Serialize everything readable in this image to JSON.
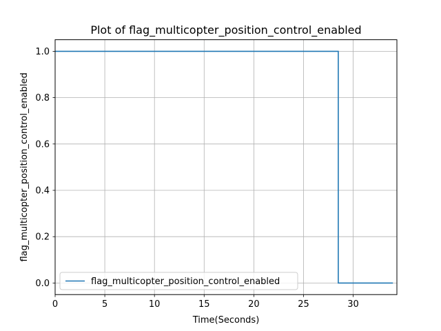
{
  "chart_data": {
    "type": "line",
    "title": "Plot of flag_multicopter_position_control_enabled",
    "xlabel": "Time(Seconds)",
    "ylabel": "flag_multicopter_position_control_enabled",
    "xlim": [
      0,
      34.4
    ],
    "ylim": [
      -0.05,
      1.05
    ],
    "x_ticks": [
      0,
      5,
      10,
      15,
      20,
      25,
      30
    ],
    "y_ticks": [
      0.0,
      0.2,
      0.4,
      0.6,
      0.8,
      1.0
    ],
    "x_tick_labels": [
      "0",
      "5",
      "10",
      "15",
      "20",
      "25",
      "30"
    ],
    "y_tick_labels": [
      "0.0",
      "0.2",
      "0.4",
      "0.6",
      "0.8",
      "1.0"
    ],
    "grid": true,
    "legend_position": "lower-left",
    "series": [
      {
        "name": "flag_multicopter_position_control_enabled",
        "color": "#1f77b4",
        "x": [
          0,
          28.5,
          28.5,
          34.0
        ],
        "y": [
          1.0,
          1.0,
          0.0,
          0.0
        ]
      }
    ]
  }
}
